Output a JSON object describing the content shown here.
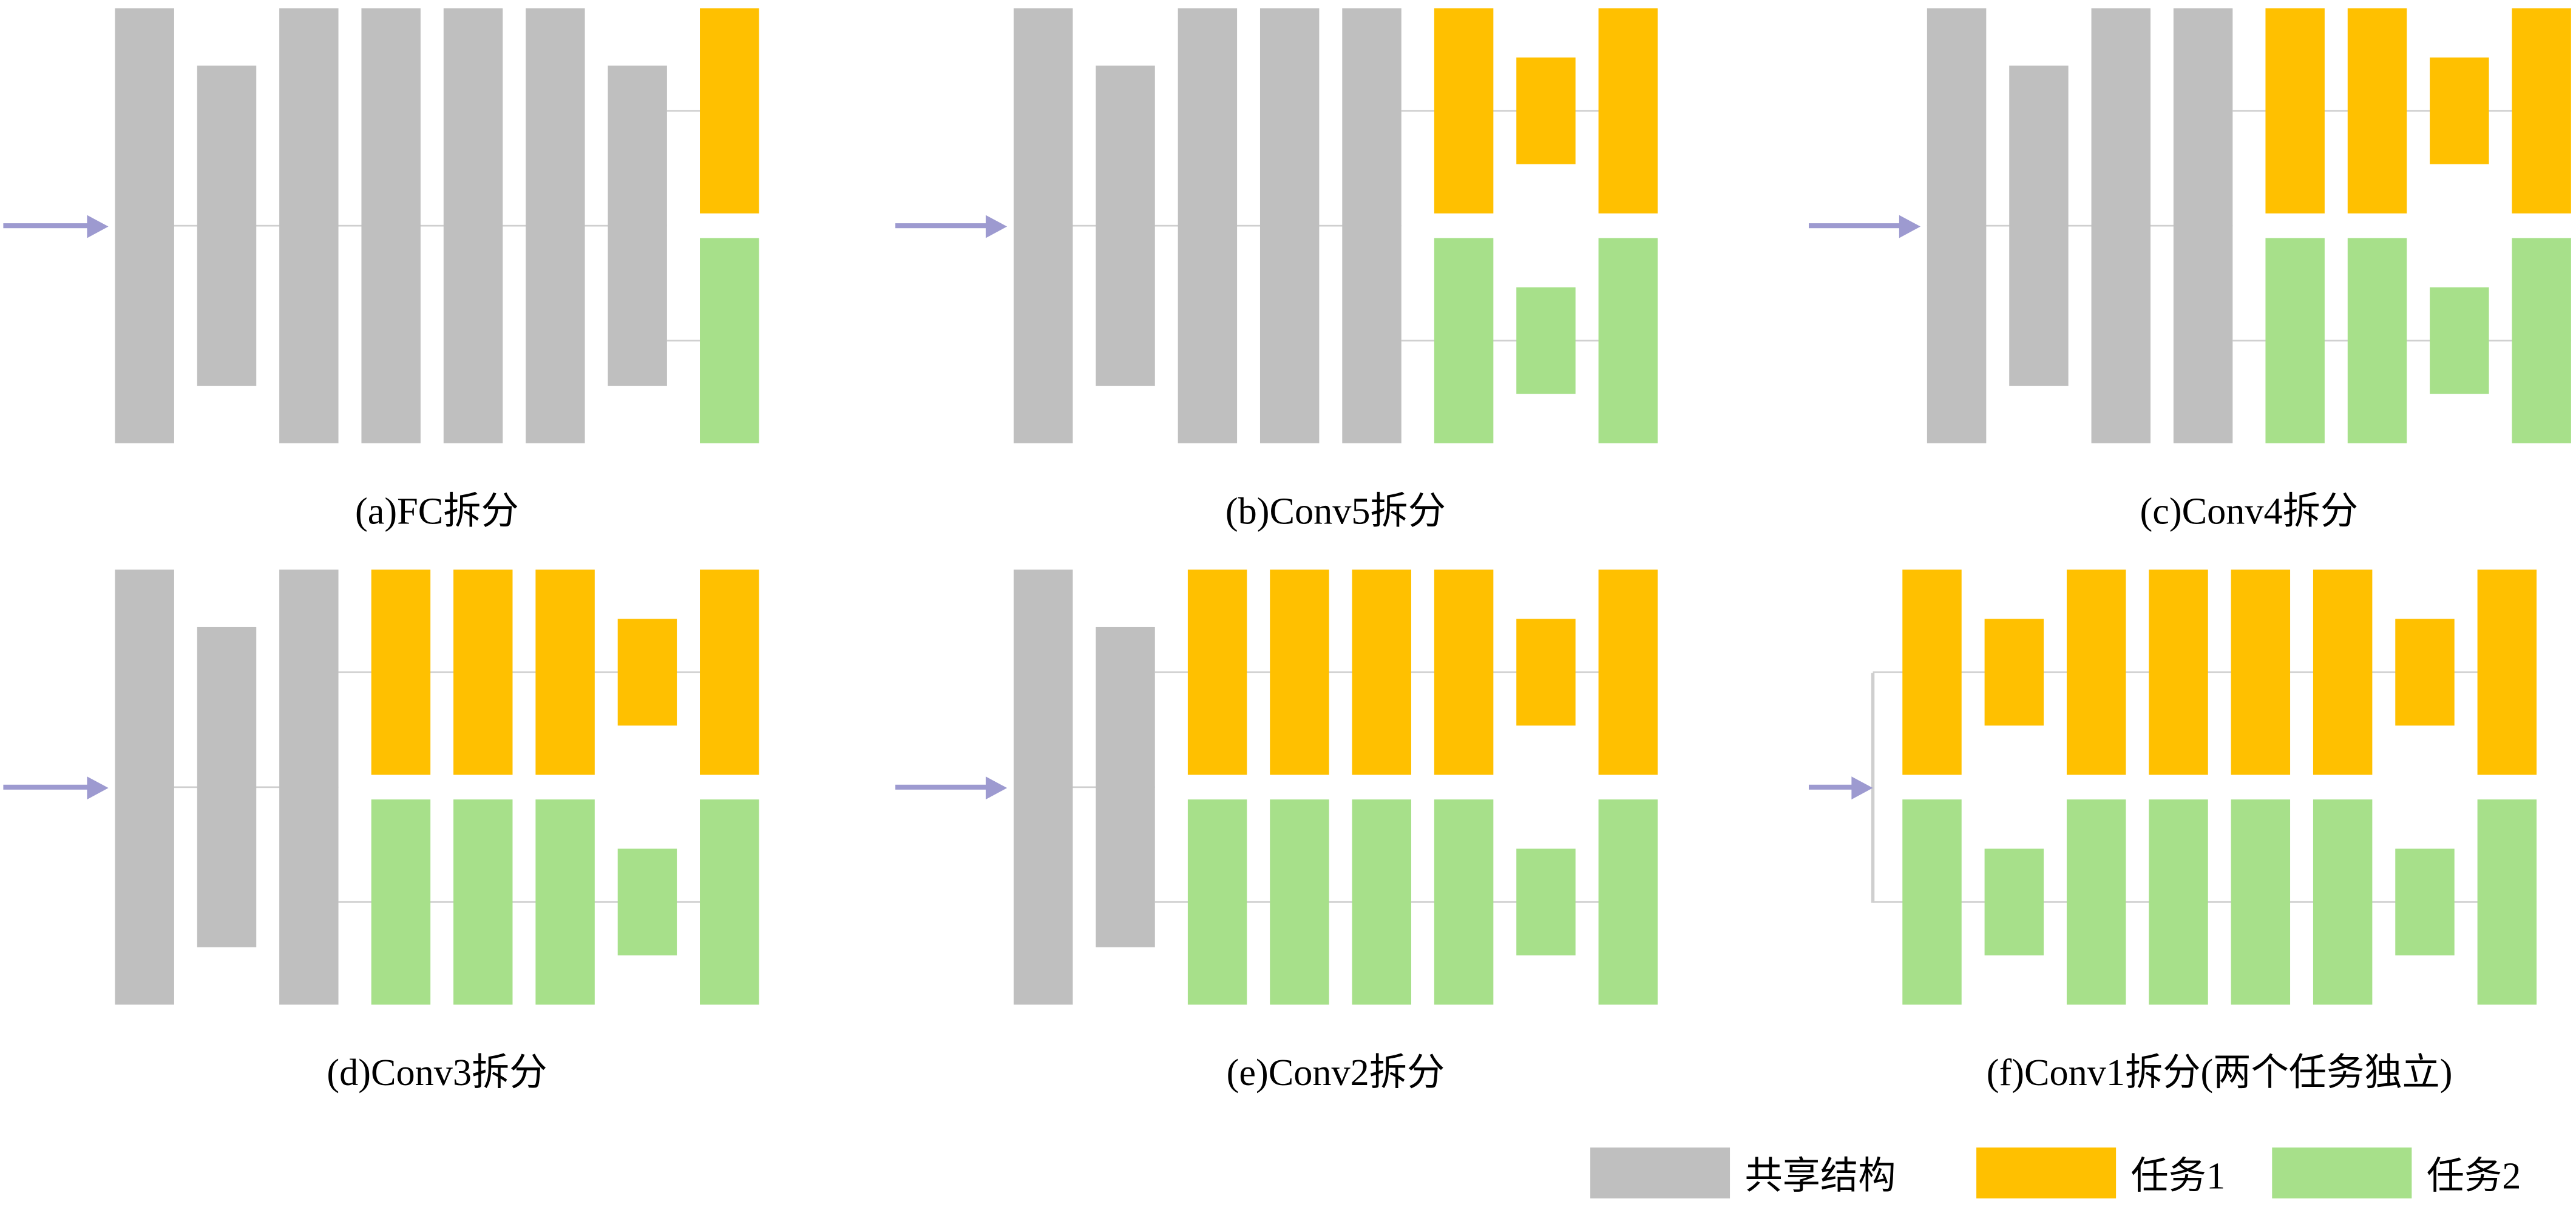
{
  "figure": {
    "description": "Multi-task network split diagram (six split strategies of a shared backbone)",
    "panels": [
      {
        "id": "a",
        "caption": "(a)FC拆分",
        "shared_layers": [
          "tall",
          "short",
          "tall",
          "tall",
          "tall",
          "tall",
          "short"
        ],
        "task_layers": [
          "tall"
        ],
        "split_bracket": false
      },
      {
        "id": "b",
        "caption": "(b)Conv5拆分",
        "shared_layers": [
          "tall",
          "short",
          "tall",
          "tall",
          "tall"
        ],
        "task_layers": [
          "tall",
          "small",
          "tall"
        ],
        "split_bracket": false
      },
      {
        "id": "c",
        "caption": "(c)Conv4拆分",
        "shared_layers": [
          "tall",
          "short",
          "tall",
          "tall"
        ],
        "task_layers": [
          "tall",
          "tall",
          "small",
          "tall"
        ],
        "split_bracket": false
      },
      {
        "id": "d",
        "caption": "(d)Conv3拆分",
        "shared_layers": [
          "tall",
          "short",
          "tall"
        ],
        "task_layers": [
          "tall",
          "tall",
          "tall",
          "small",
          "tall"
        ],
        "split_bracket": false
      },
      {
        "id": "e",
        "caption": "(e)Conv2拆分",
        "shared_layers": [
          "tall",
          "short"
        ],
        "task_layers": [
          "tall",
          "tall",
          "tall",
          "tall",
          "small",
          "tall"
        ],
        "split_bracket": false
      },
      {
        "id": "f",
        "caption": "(f)Conv1拆分(两个任务独立)",
        "shared_layers": [],
        "task_layers": [
          "tall",
          "small",
          "tall",
          "tall",
          "tall",
          "tall",
          "small",
          "tall"
        ],
        "split_bracket": true
      }
    ],
    "legend": [
      {
        "label": "共享结构",
        "color_key": "shared"
      },
      {
        "label": "任务1",
        "color_key": "task1"
      },
      {
        "label": "任务2",
        "color_key": "task2"
      }
    ],
    "colors": {
      "shared": "#BFBFBF",
      "task1": "#FFC000",
      "task2": "#A7E08A",
      "arrow": "#9D9AD0",
      "connector": "#CFCFCF"
    }
  }
}
